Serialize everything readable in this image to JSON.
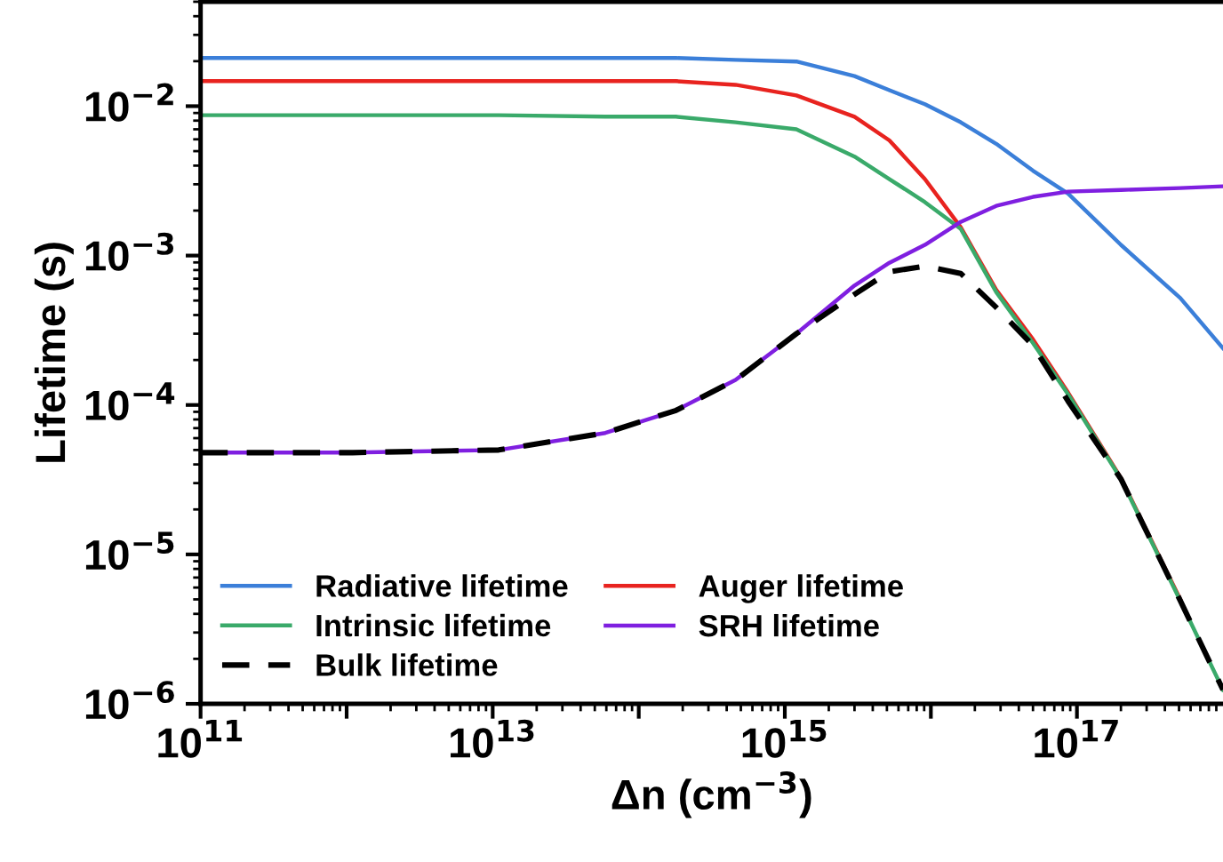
{
  "chart_data": {
    "type": "line",
    "xlabel": "Δn (cm$^{−3}$)",
    "ylabel": "Lifetime (s)",
    "log": "xy",
    "x": [
      100000000000.0,
      1100000000000.0,
      11000000000000.0,
      59000000000000.0,
      180000000000000.0,
      460000000000000.0,
      1200000000000000.0,
      3000000000000000.0,
      5200000000000000.0,
      9100000000000000.0,
      1.6e+16,
      2.8e+16,
      5e+16,
      8.7e+16,
      2e+17,
      5.1e+17,
      1e+18
    ],
    "xlim": [
      100000000000.0,
      1e+18
    ],
    "ylim": [
      1e-06,
      0.05
    ],
    "xticks": [
      {
        "value": 100000000000.0,
        "label": "10$^{11}$"
      },
      {
        "value": 1000000000000.0,
        "label": null
      },
      {
        "value": 10000000000000.0,
        "label": "10$^{13}$"
      },
      {
        "value": 100000000000000.0,
        "label": null
      },
      {
        "value": 1000000000000000.0,
        "label": "10$^{15}$"
      },
      {
        "value": 1e+16,
        "label": null
      },
      {
        "value": 1e+17,
        "label": "10$^{17}$"
      }
    ],
    "yticks": [
      {
        "value": 1e-06,
        "label": "10$^{−6}$"
      },
      {
        "value": 1e-05,
        "label": "10$^{−5}$"
      },
      {
        "value": 0.0001,
        "label": "10$^{−4}$"
      },
      {
        "value": 0.001,
        "label": "10$^{−3}$"
      },
      {
        "value": 0.01,
        "label": "10$^{−2}$"
      }
    ],
    "grid": false,
    "legend": "bottom left",
    "marker": "none",
    "series": [
      {
        "name": "Radiative lifetime",
        "color": "#3b7fd9",
        "line_style": "solid",
        "values": [
          0.021,
          0.021,
          0.021,
          0.021,
          0.021,
          0.0204,
          0.0199,
          0.0159,
          0.0128,
          0.0103,
          0.0078,
          0.0056,
          0.0037,
          0.0026,
          0.00118,
          0.00052,
          0.00024
        ]
      },
      {
        "name": "Auger lifetime",
        "color": "#e8231f",
        "line_style": "solid",
        "values": [
          0.0147,
          0.0147,
          0.0147,
          0.0147,
          0.0147,
          0.0139,
          0.0118,
          0.0085,
          0.0059,
          0.00325,
          0.00155,
          0.00059,
          0.000275,
          0.000121,
          3.25e-05,
          5e-06,
          null
        ]
      },
      {
        "name": "Intrinsic lifetime",
        "color": "#3aaa6a",
        "line_style": "solid",
        "values": [
          0.0087,
          0.0087,
          0.0087,
          0.0085,
          0.0085,
          0.0078,
          0.007,
          0.0046,
          0.00325,
          0.00228,
          0.00151,
          0.00057,
          0.00026,
          0.000118,
          3.2e-05,
          4.9e-06,
          1.24e-06
        ]
      },
      {
        "name": "SRH lifetime",
        "color": "#7f1fe0",
        "line_style": "solid",
        "values": [
          4.8e-05,
          4.8e-05,
          5e-05,
          6.5e-05,
          9.2e-05,
          0.000147,
          0.0003,
          0.00063,
          0.000895,
          0.00118,
          0.00168,
          0.00215,
          0.00247,
          0.00268,
          0.00275,
          0.00283,
          0.00291
        ]
      },
      {
        "name": "Bulk lifetime",
        "color": "#000000",
        "line_style": "dashed",
        "values": [
          4.8e-05,
          4.8e-05,
          5e-05,
          6.5e-05,
          9.2e-05,
          0.000147,
          0.0003,
          0.00055,
          0.00078,
          0.00085,
          0.00076,
          0.00045,
          0.00025,
          0.000106,
          3.2e-05,
          4.9e-06,
          1.24e-06
        ]
      }
    ]
  }
}
